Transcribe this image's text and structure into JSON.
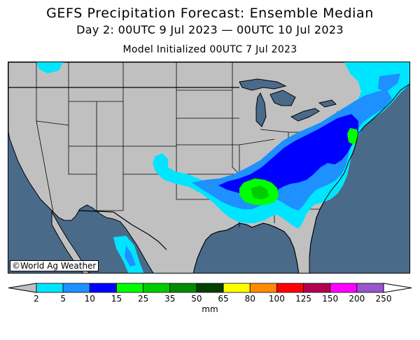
{
  "title": "GEFS Precipitation Forecast: Ensemble Median",
  "subtitle": "Day 2: 00UTC 9 Jul 2023 — 00UTC 10 Jul 2023",
  "init": "Model Initialized 00UTC 7 Jul 2023",
  "credit": "©World Ag Weather",
  "colorbar": {
    "unit": "mm",
    "levels": [
      "2",
      "5",
      "10",
      "15",
      "25",
      "35",
      "50",
      "65",
      "80",
      "100",
      "125",
      "150",
      "200",
      "250"
    ],
    "colors": [
      "#00e5ff",
      "#1e90ff",
      "#0000ff",
      "#00ff00",
      "#00cd00",
      "#008b00",
      "#004000",
      "#ffff00",
      "#ff8c00",
      "#ff0000",
      "#b00050",
      "#ff00ff",
      "#9955cc"
    ],
    "under_color": "#c0c0c0",
    "over_color": "#ffffff"
  },
  "map": {
    "ocean_color": "#4a6a8a",
    "land_color": "#c0c0c0"
  }
}
